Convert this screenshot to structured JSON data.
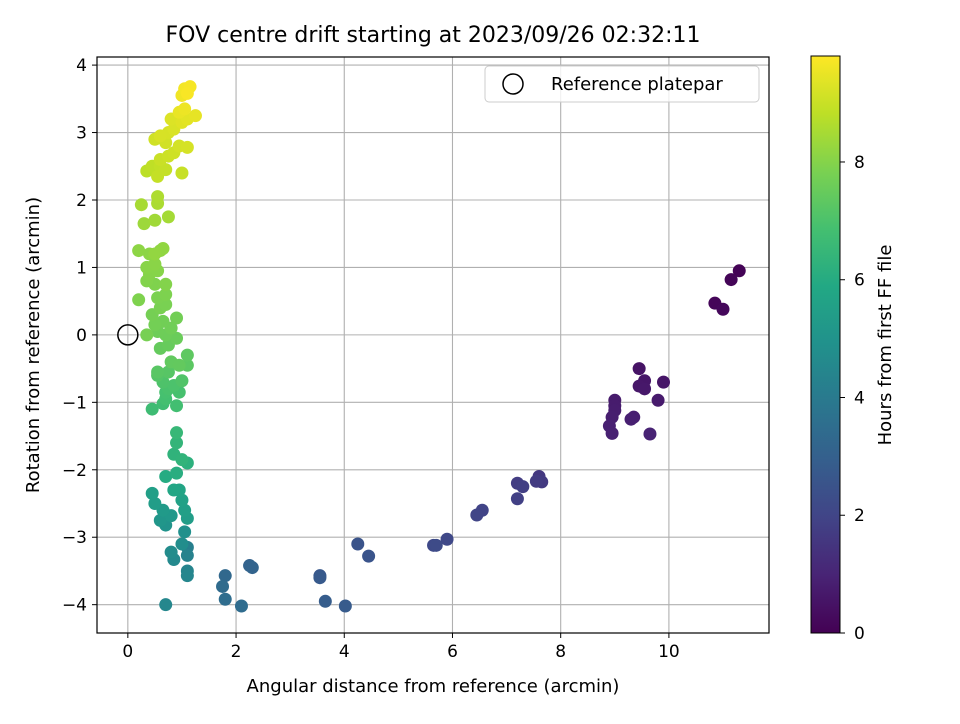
{
  "chart_data": {
    "type": "scatter",
    "title": "FOV centre drift starting at 2023/09/26 02:32:11",
    "xlabel": "Angular distance from reference (arcmin)",
    "ylabel": "Rotation from reference (arcmin)",
    "xlim": [
      -0.57,
      11.85
    ],
    "ylim": [
      -4.42,
      4.12
    ],
    "xticks": [
      0,
      2,
      4,
      6,
      8,
      10
    ],
    "yticks": [
      -4,
      -3,
      -2,
      -1,
      0,
      1,
      2,
      3,
      4
    ],
    "grid": true,
    "legend": {
      "location": "upper right",
      "entries": [
        "Reference platepar"
      ]
    },
    "reference_point": {
      "x": 0,
      "y": 0,
      "label": "Reference platepar",
      "marker": "open-circle"
    },
    "colormap": "viridis",
    "colorbar": {
      "label": "Hours from first FF file",
      "range": [
        0,
        9.8
      ],
      "ticks": [
        0,
        2,
        4,
        6,
        8
      ]
    },
    "points": [
      {
        "x": 11.3,
        "y": 0.95,
        "t": 0.05
      },
      {
        "x": 11.15,
        "y": 0.82,
        "t": 0.1
      },
      {
        "x": 10.85,
        "y": 0.47,
        "t": 0.15
      },
      {
        "x": 11.0,
        "y": 0.38,
        "t": 0.2
      },
      {
        "x": 9.45,
        "y": -0.5,
        "t": 0.5
      },
      {
        "x": 9.9,
        "y": -0.7,
        "t": 0.55
      },
      {
        "x": 9.55,
        "y": -0.68,
        "t": 0.6
      },
      {
        "x": 9.45,
        "y": -0.76,
        "t": 0.62
      },
      {
        "x": 9.55,
        "y": -0.8,
        "t": 0.65
      },
      {
        "x": 9.8,
        "y": -0.97,
        "t": 0.7
      },
      {
        "x": 9.0,
        "y": -0.97,
        "t": 0.72
      },
      {
        "x": 9.0,
        "y": -1.05,
        "t": 0.75
      },
      {
        "x": 9.0,
        "y": -1.12,
        "t": 0.78
      },
      {
        "x": 8.95,
        "y": -1.22,
        "t": 0.8
      },
      {
        "x": 9.35,
        "y": -1.22,
        "t": 0.82
      },
      {
        "x": 9.3,
        "y": -1.25,
        "t": 0.85
      },
      {
        "x": 8.9,
        "y": -1.35,
        "t": 0.88
      },
      {
        "x": 8.95,
        "y": -1.46,
        "t": 0.9
      },
      {
        "x": 9.65,
        "y": -1.47,
        "t": 0.95
      },
      {
        "x": 7.6,
        "y": -2.1,
        "t": 1.6
      },
      {
        "x": 7.65,
        "y": -2.18,
        "t": 1.65
      },
      {
        "x": 7.55,
        "y": -2.17,
        "t": 1.7
      },
      {
        "x": 7.2,
        "y": -2.2,
        "t": 1.75
      },
      {
        "x": 7.3,
        "y": -2.25,
        "t": 1.8
      },
      {
        "x": 7.2,
        "y": -2.43,
        "t": 1.85
      },
      {
        "x": 6.55,
        "y": -2.6,
        "t": 1.95
      },
      {
        "x": 6.45,
        "y": -2.67,
        "t": 2.0
      },
      {
        "x": 5.9,
        "y": -3.03,
        "t": 2.1
      },
      {
        "x": 5.65,
        "y": -3.12,
        "t": 2.15
      },
      {
        "x": 5.7,
        "y": -3.12,
        "t": 2.2
      },
      {
        "x": 4.25,
        "y": -3.1,
        "t": 2.5
      },
      {
        "x": 4.45,
        "y": -3.28,
        "t": 2.55
      },
      {
        "x": 3.55,
        "y": -3.57,
        "t": 2.7
      },
      {
        "x": 3.55,
        "y": -3.6,
        "t": 2.75
      },
      {
        "x": 3.65,
        "y": -3.95,
        "t": 2.85
      },
      {
        "x": 4.02,
        "y": -4.02,
        "t": 2.8
      },
      {
        "x": 2.25,
        "y": -3.42,
        "t": 3.1
      },
      {
        "x": 2.3,
        "y": -3.45,
        "t": 3.15
      },
      {
        "x": 1.8,
        "y": -3.57,
        "t": 3.3
      },
      {
        "x": 1.75,
        "y": -3.73,
        "t": 3.4
      },
      {
        "x": 1.8,
        "y": -3.92,
        "t": 3.5
      },
      {
        "x": 2.1,
        "y": -4.02,
        "t": 3.45
      },
      {
        "x": 1.1,
        "y": -3.15,
        "t": 4.2
      },
      {
        "x": 1.1,
        "y": -3.27,
        "t": 4.3
      },
      {
        "x": 1.1,
        "y": -3.5,
        "t": 4.4
      },
      {
        "x": 1.1,
        "y": -3.57,
        "t": 4.45
      },
      {
        "x": 0.85,
        "y": -3.33,
        "t": 4.6
      },
      {
        "x": 0.8,
        "y": -3.22,
        "t": 4.7
      },
      {
        "x": 1.0,
        "y": -3.1,
        "t": 4.75
      },
      {
        "x": 1.05,
        "y": -2.92,
        "t": 4.85
      },
      {
        "x": 0.7,
        "y": -4.0,
        "t": 4.5
      },
      {
        "x": 0.7,
        "y": -2.82,
        "t": 5.0
      },
      {
        "x": 0.6,
        "y": -2.75,
        "t": 5.1
      },
      {
        "x": 0.8,
        "y": -2.68,
        "t": 5.2
      },
      {
        "x": 0.65,
        "y": -2.6,
        "t": 5.3
      },
      {
        "x": 0.5,
        "y": -2.5,
        "t": 5.4
      },
      {
        "x": 0.45,
        "y": -2.35,
        "t": 5.5
      },
      {
        "x": 1.1,
        "y": -2.72,
        "t": 5.4
      },
      {
        "x": 1.05,
        "y": -2.6,
        "t": 5.5
      },
      {
        "x": 1.0,
        "y": -2.45,
        "t": 5.6
      },
      {
        "x": 0.95,
        "y": -2.3,
        "t": 5.7
      },
      {
        "x": 0.85,
        "y": -2.3,
        "t": 5.8
      },
      {
        "x": 0.7,
        "y": -2.1,
        "t": 6.0
      },
      {
        "x": 0.9,
        "y": -2.05,
        "t": 6.1
      },
      {
        "x": 1.1,
        "y": -1.9,
        "t": 6.2
      },
      {
        "x": 0.85,
        "y": -1.77,
        "t": 6.3
      },
      {
        "x": 1.0,
        "y": -1.85,
        "t": 6.35
      },
      {
        "x": 0.9,
        "y": -1.6,
        "t": 6.4
      },
      {
        "x": 0.9,
        "y": -1.45,
        "t": 6.5
      },
      {
        "x": 0.45,
        "y": -1.1,
        "t": 6.7
      },
      {
        "x": 0.65,
        "y": -1.02,
        "t": 6.75
      },
      {
        "x": 0.9,
        "y": -1.05,
        "t": 6.8
      },
      {
        "x": 0.7,
        "y": -0.95,
        "t": 6.85
      },
      {
        "x": 0.7,
        "y": -0.85,
        "t": 6.9
      },
      {
        "x": 0.95,
        "y": -0.85,
        "t": 6.92
      },
      {
        "x": 0.75,
        "y": -0.8,
        "t": 6.95
      },
      {
        "x": 0.85,
        "y": -0.75,
        "t": 7.0
      },
      {
        "x": 0.65,
        "y": -0.7,
        "t": 7.05
      },
      {
        "x": 1.0,
        "y": -0.68,
        "t": 7.1
      },
      {
        "x": 0.55,
        "y": -0.6,
        "t": 7.15
      },
      {
        "x": 0.75,
        "y": -0.55,
        "t": 7.2
      },
      {
        "x": 0.55,
        "y": -0.55,
        "t": 7.25
      },
      {
        "x": 1.1,
        "y": -0.45,
        "t": 7.3
      },
      {
        "x": 1.1,
        "y": -0.3,
        "t": 7.35
      },
      {
        "x": 0.8,
        "y": -0.4,
        "t": 7.4
      },
      {
        "x": 0.95,
        "y": -0.45,
        "t": 7.42
      },
      {
        "x": 0.6,
        "y": -0.2,
        "t": 7.45
      },
      {
        "x": 0.75,
        "y": -0.15,
        "t": 7.5
      },
      {
        "x": 0.9,
        "y": -0.05,
        "t": 7.55
      },
      {
        "x": 0.7,
        "y": 0.0,
        "t": 7.6
      },
      {
        "x": 0.55,
        "y": 0.05,
        "t": 7.62
      },
      {
        "x": 0.8,
        "y": 0.1,
        "t": 7.65
      },
      {
        "x": 0.65,
        "y": 0.2,
        "t": 7.68
      },
      {
        "x": 0.9,
        "y": 0.25,
        "t": 7.7
      },
      {
        "x": 0.5,
        "y": 0.15,
        "t": 7.72
      },
      {
        "x": 0.45,
        "y": 0.3,
        "t": 7.75
      },
      {
        "x": 0.35,
        "y": 0.0,
        "t": 7.78
      },
      {
        "x": 0.6,
        "y": 0.4,
        "t": 7.8
      },
      {
        "x": 0.7,
        "y": 0.45,
        "t": 7.82
      },
      {
        "x": 0.55,
        "y": 0.55,
        "t": 7.85
      },
      {
        "x": 0.7,
        "y": 0.6,
        "t": 7.88
      },
      {
        "x": 0.2,
        "y": 0.52,
        "t": 7.9
      },
      {
        "x": 0.5,
        "y": 0.75,
        "t": 7.92
      },
      {
        "x": 0.35,
        "y": 0.8,
        "t": 7.95
      },
      {
        "x": 0.7,
        "y": 0.75,
        "t": 7.97
      },
      {
        "x": 0.4,
        "y": 0.9,
        "t": 8.0
      },
      {
        "x": 0.55,
        "y": 0.95,
        "t": 8.02
      },
      {
        "x": 0.35,
        "y": 1.0,
        "t": 8.05
      },
      {
        "x": 0.5,
        "y": 1.05,
        "t": 8.07
      },
      {
        "x": 0.4,
        "y": 1.2,
        "t": 8.1
      },
      {
        "x": 0.2,
        "y": 1.25,
        "t": 8.12
      },
      {
        "x": 0.6,
        "y": 1.25,
        "t": 8.15
      },
      {
        "x": 0.65,
        "y": 1.28,
        "t": 8.18
      },
      {
        "x": 0.5,
        "y": 1.2,
        "t": 8.2
      },
      {
        "x": 0.3,
        "y": 1.65,
        "t": 8.35
      },
      {
        "x": 0.5,
        "y": 1.7,
        "t": 8.4
      },
      {
        "x": 0.75,
        "y": 1.75,
        "t": 8.45
      },
      {
        "x": 0.25,
        "y": 1.93,
        "t": 8.5
      },
      {
        "x": 0.55,
        "y": 1.95,
        "t": 8.55
      },
      {
        "x": 0.55,
        "y": 2.05,
        "t": 8.6
      },
      {
        "x": 0.35,
        "y": 2.43,
        "t": 8.8
      },
      {
        "x": 0.45,
        "y": 2.5,
        "t": 8.85
      },
      {
        "x": 0.6,
        "y": 2.5,
        "t": 8.9
      },
      {
        "x": 0.55,
        "y": 2.35,
        "t": 8.92
      },
      {
        "x": 0.7,
        "y": 2.45,
        "t": 8.95
      },
      {
        "x": 1.0,
        "y": 2.4,
        "t": 8.97
      },
      {
        "x": 0.6,
        "y": 2.6,
        "t": 9.0
      },
      {
        "x": 0.75,
        "y": 2.65,
        "t": 9.05
      },
      {
        "x": 0.85,
        "y": 2.7,
        "t": 9.08
      },
      {
        "x": 0.5,
        "y": 2.9,
        "t": 9.1
      },
      {
        "x": 0.7,
        "y": 2.85,
        "t": 9.12
      },
      {
        "x": 0.95,
        "y": 2.8,
        "t": 9.15
      },
      {
        "x": 1.1,
        "y": 2.78,
        "t": 9.18
      },
      {
        "x": 0.75,
        "y": 3.0,
        "t": 9.2
      },
      {
        "x": 0.6,
        "y": 2.95,
        "t": 9.22
      },
      {
        "x": 0.85,
        "y": 3.05,
        "t": 9.25
      },
      {
        "x": 0.8,
        "y": 3.2,
        "t": 9.3
      },
      {
        "x": 1.0,
        "y": 3.15,
        "t": 9.35
      },
      {
        "x": 1.1,
        "y": 3.2,
        "t": 9.4
      },
      {
        "x": 1.25,
        "y": 3.25,
        "t": 9.45
      },
      {
        "x": 0.95,
        "y": 3.3,
        "t": 9.5
      },
      {
        "x": 1.05,
        "y": 3.35,
        "t": 9.55
      },
      {
        "x": 1.0,
        "y": 3.55,
        "t": 9.6
      },
      {
        "x": 1.05,
        "y": 3.65,
        "t": 9.65
      },
      {
        "x": 1.15,
        "y": 3.68,
        "t": 9.7
      },
      {
        "x": 1.1,
        "y": 3.58,
        "t": 9.72
      }
    ]
  }
}
